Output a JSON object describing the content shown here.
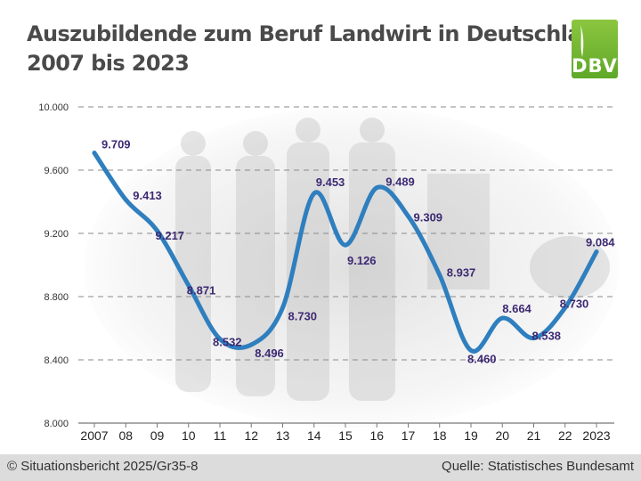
{
  "title": {
    "line1": "Auszubildende zum Beruf Landwirt in Deutschland",
    "line2": "2007 bis 2023"
  },
  "logo": {
    "text": "DBV",
    "color": "#6cb33f"
  },
  "footer": {
    "left": "© Situationsbericht 2025/Gr35-8",
    "right": "Quelle: Statistisches Bundesamt"
  },
  "chart_data": {
    "type": "line",
    "x": [
      "2007",
      "08",
      "09",
      "10",
      "11",
      "12",
      "13",
      "14",
      "15",
      "16",
      "17",
      "18",
      "19",
      "20",
      "21",
      "22",
      "2023"
    ],
    "y_ticks": [
      "8.000",
      "8.400",
      "8.800",
      "9.200",
      "9.600",
      "10.000"
    ],
    "ylim": [
      8000,
      10000
    ],
    "grid": true,
    "line_color": "#2f7fbf",
    "label_color": "#3d2a73",
    "series": [
      {
        "values": [
          9709,
          9413,
          9217,
          8871,
          8532,
          8496,
          8730,
          9453,
          9126,
          9489,
          9309,
          8937,
          8460,
          8664,
          8538,
          8730,
          9084
        ],
        "labels": [
          "9.709",
          "9.413",
          "9.217",
          "8.871",
          "8.532",
          "8.496",
          "8.730",
          "9.453",
          "9.126",
          "9.489",
          "9.309",
          "8.937",
          "8.460",
          "8.664",
          "8.538",
          "8.730",
          "9.084"
        ]
      }
    ]
  }
}
